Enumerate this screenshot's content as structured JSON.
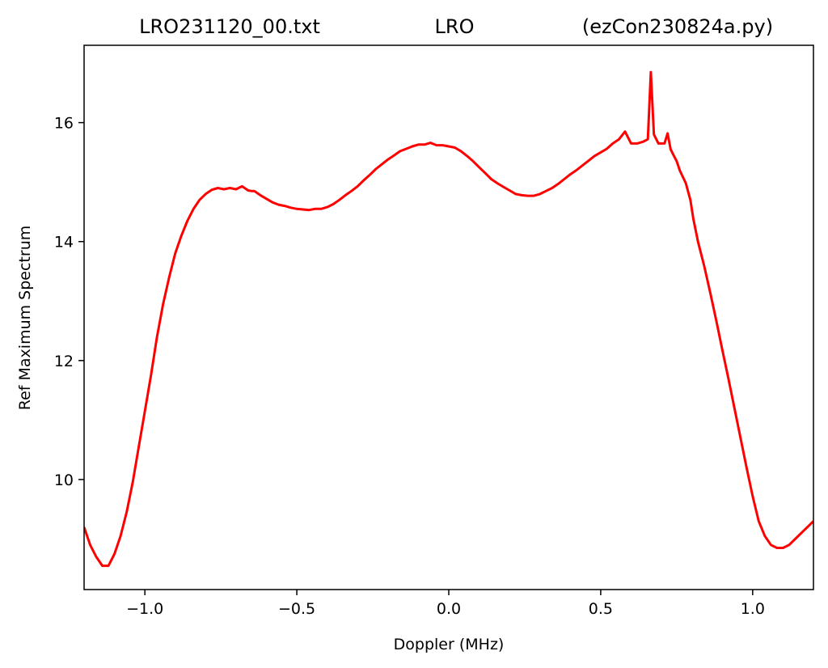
{
  "chart_data": {
    "type": "line",
    "title_left": "LRO231120_00.txt",
    "title_center": "LRO",
    "title_right": "(ezCon230824a.py)",
    "xlabel": "Doppler (MHz)",
    "ylabel": "Ref Maximum Spectrum",
    "xlim": [
      -1.2,
      1.2
    ],
    "ylim": [
      8.15,
      17.3
    ],
    "x_ticks": [
      -1.0,
      -0.5,
      0.0,
      0.5,
      1.0
    ],
    "x_tick_labels": [
      "−1.0",
      "−0.5",
      "0.0",
      "0.5",
      "1.0"
    ],
    "y_ticks": [
      10,
      12,
      14,
      16
    ],
    "y_tick_labels": [
      "10",
      "12",
      "14",
      "16"
    ],
    "grid": false,
    "series": [
      {
        "color": "#ff0000",
        "x": [
          -1.2,
          -1.18,
          -1.16,
          -1.14,
          -1.12,
          -1.1,
          -1.08,
          -1.06,
          -1.04,
          -1.02,
          -1.0,
          -0.98,
          -0.96,
          -0.94,
          -0.92,
          -0.9,
          -0.88,
          -0.86,
          -0.84,
          -0.82,
          -0.8,
          -0.78,
          -0.76,
          -0.74,
          -0.72,
          -0.7,
          -0.68,
          -0.66,
          -0.65,
          -0.64,
          -0.62,
          -0.6,
          -0.58,
          -0.56,
          -0.54,
          -0.52,
          -0.5,
          -0.48,
          -0.46,
          -0.44,
          -0.42,
          -0.4,
          -0.38,
          -0.36,
          -0.34,
          -0.32,
          -0.3,
          -0.28,
          -0.26,
          -0.24,
          -0.22,
          -0.2,
          -0.18,
          -0.16,
          -0.14,
          -0.12,
          -0.1,
          -0.08,
          -0.06,
          -0.04,
          -0.02,
          0.0,
          0.02,
          0.04,
          0.06,
          0.08,
          0.1,
          0.12,
          0.14,
          0.16,
          0.18,
          0.2,
          0.22,
          0.24,
          0.26,
          0.28,
          0.3,
          0.32,
          0.34,
          0.36,
          0.38,
          0.4,
          0.42,
          0.44,
          0.46,
          0.48,
          0.5,
          0.52,
          0.54,
          0.56,
          0.58,
          0.6,
          0.62,
          0.64,
          0.655,
          0.665,
          0.675,
          0.69,
          0.71,
          0.72,
          0.73,
          0.74,
          0.75,
          0.76,
          0.78,
          0.795,
          0.805,
          0.82,
          0.84,
          0.86,
          0.88,
          0.9,
          0.92,
          0.94,
          0.96,
          0.98,
          1.0,
          1.02,
          1.04,
          1.06,
          1.08,
          1.1,
          1.12,
          1.14,
          1.16,
          1.18,
          1.2
        ],
        "y": [
          9.2,
          8.9,
          8.7,
          8.55,
          8.55,
          8.75,
          9.05,
          9.45,
          9.95,
          10.55,
          11.15,
          11.75,
          12.4,
          12.95,
          13.4,
          13.8,
          14.1,
          14.35,
          14.55,
          14.7,
          14.8,
          14.87,
          14.9,
          14.88,
          14.9,
          14.88,
          14.93,
          14.86,
          14.85,
          14.85,
          14.78,
          14.72,
          14.66,
          14.62,
          14.6,
          14.57,
          14.55,
          14.54,
          14.53,
          14.55,
          14.55,
          14.58,
          14.63,
          14.7,
          14.78,
          14.85,
          14.93,
          15.03,
          15.12,
          15.22,
          15.3,
          15.38,
          15.45,
          15.52,
          15.56,
          15.6,
          15.63,
          15.63,
          15.66,
          15.62,
          15.62,
          15.6,
          15.58,
          15.52,
          15.44,
          15.35,
          15.25,
          15.15,
          15.05,
          14.98,
          14.92,
          14.86,
          14.8,
          14.78,
          14.77,
          14.77,
          14.8,
          14.85,
          14.9,
          14.97,
          15.05,
          15.13,
          15.2,
          15.28,
          15.36,
          15.44,
          15.5,
          15.56,
          15.65,
          15.72,
          15.85,
          15.65,
          15.65,
          15.68,
          15.72,
          16.85,
          15.8,
          15.65,
          15.65,
          15.82,
          15.55,
          15.45,
          15.35,
          15.2,
          14.98,
          14.7,
          14.38,
          14.0,
          13.6,
          13.15,
          12.68,
          12.18,
          11.7,
          11.2,
          10.7,
          10.2,
          9.72,
          9.3,
          9.05,
          8.9,
          8.85,
          8.85,
          8.9,
          9.0,
          9.1,
          9.2,
          9.3
        ]
      }
    ]
  }
}
